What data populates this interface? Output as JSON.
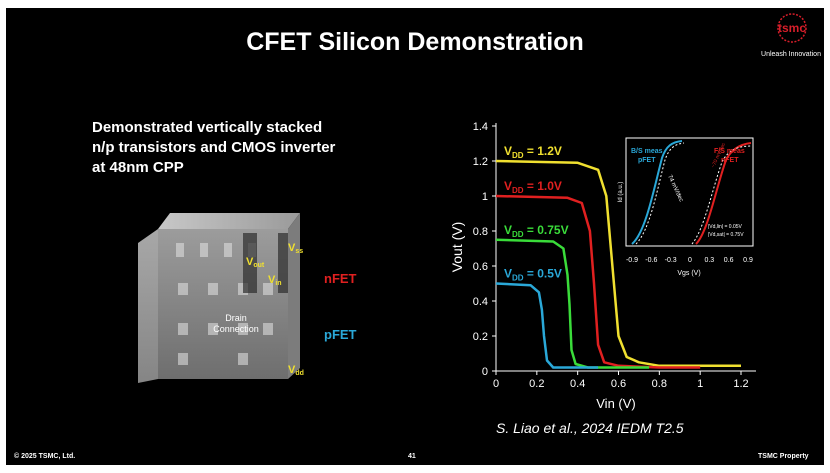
{
  "slide": {
    "title": "CFET Silicon Demonstration",
    "logo_text": "tsmc",
    "tagline": "Unleash Innovation",
    "bullet_lines": [
      "Demonstrated vertically stacked",
      "n/p transistors and CMOS inverter",
      "at 48nm CPP"
    ],
    "footer_left": "© 2025 TSMC, Ltd.",
    "page_number": "41",
    "footer_right": "TSMC Property",
    "citation": "S. Liao et al., 2024 IEDM T2.5"
  },
  "image_labels": {
    "vout": "V",
    "vout_sub": "out",
    "vss": "V",
    "vss_sub": "ss",
    "vin": "V",
    "vin_sub": "in",
    "drain": "Drain",
    "connection": "Connection",
    "vdd": "V",
    "vdd_sub": "dd",
    "nfet": "nFET",
    "pfet": "pFET"
  },
  "colors": {
    "nfet": "#e02020",
    "pfet": "#2aa8d8",
    "label_yellow": "#f0e030",
    "accent_red": "#d81e2a"
  },
  "chart_data": [
    {
      "type": "line",
      "xlabel": "Vin (V)",
      "ylabel": "Vout (V)",
      "xlim": [
        0,
        1.2
      ],
      "ylim": [
        0,
        1.4
      ],
      "xticks": [
        "0",
        "0.2",
        "0.4",
        "0.6",
        "0.8",
        "1",
        "1.2"
      ],
      "yticks": [
        "0",
        "0.2",
        "0.4",
        "0.6",
        "0.8",
        "1",
        "1.2",
        "1.4"
      ],
      "grid": false,
      "series": [
        {
          "name": "V",
          "sub": "DD",
          "value_text": " = 1.2V",
          "color": "#f0e030",
          "vdd": 1.2,
          "vm": 0.57,
          "x": [
            0,
            0.4,
            0.5,
            0.54,
            0.57,
            0.6,
            0.64,
            0.7,
            0.8,
            1.0,
            1.2
          ],
          "y": [
            1.2,
            1.19,
            1.15,
            1.0,
            0.6,
            0.2,
            0.08,
            0.05,
            0.03,
            0.03,
            0.03
          ]
        },
        {
          "name": "V",
          "sub": "DD",
          "value_text": " = 1.0V",
          "color": "#e02020",
          "vdd": 1.0,
          "vm": 0.48,
          "x": [
            0,
            0.35,
            0.42,
            0.46,
            0.48,
            0.5,
            0.53,
            0.6,
            0.8,
            1.0
          ],
          "y": [
            1.0,
            0.99,
            0.96,
            0.8,
            0.5,
            0.15,
            0.05,
            0.03,
            0.02,
            0.02
          ]
        },
        {
          "name": "V",
          "sub": "DD",
          "value_text": " = 0.75V",
          "color": "#3adc3a",
          "vdd": 0.75,
          "vm": 0.36,
          "x": [
            0,
            0.28,
            0.33,
            0.35,
            0.36,
            0.37,
            0.39,
            0.45,
            0.6,
            0.75
          ],
          "y": [
            0.75,
            0.74,
            0.7,
            0.55,
            0.38,
            0.12,
            0.04,
            0.02,
            0.02,
            0.02
          ]
        },
        {
          "name": "V",
          "sub": "DD",
          "value_text": " = 0.5V",
          "color": "#2aa8d8",
          "vdd": 0.5,
          "vm": 0.23,
          "x": [
            0,
            0.17,
            0.21,
            0.225,
            0.235,
            0.25,
            0.28,
            0.35,
            0.5
          ],
          "y": [
            0.5,
            0.49,
            0.45,
            0.35,
            0.2,
            0.06,
            0.02,
            0.02,
            0.02
          ]
        }
      ]
    },
    {
      "type": "line",
      "xlabel": "Vgs (V)",
      "ylabel": "Id (a.u.)",
      "xlim": [
        -0.9,
        0.9
      ],
      "xticks": [
        "-0.9",
        "-0.6",
        "-0.3",
        "0",
        "0.3",
        "0.6",
        "0.9"
      ],
      "log_scale": true,
      "annotations": [
        "74 mV/dec",
        "~70 mV/dec",
        "|Vd,lin| = 0.05V",
        "|Vd,sat| = 0.75V"
      ],
      "series": [
        {
          "name": "B/S meas",
          "sub_name": "pFET",
          "color": "#2aa8d8"
        },
        {
          "name": "F/S meas",
          "sub_name": "nFET",
          "color": "#e02020"
        }
      ]
    }
  ]
}
